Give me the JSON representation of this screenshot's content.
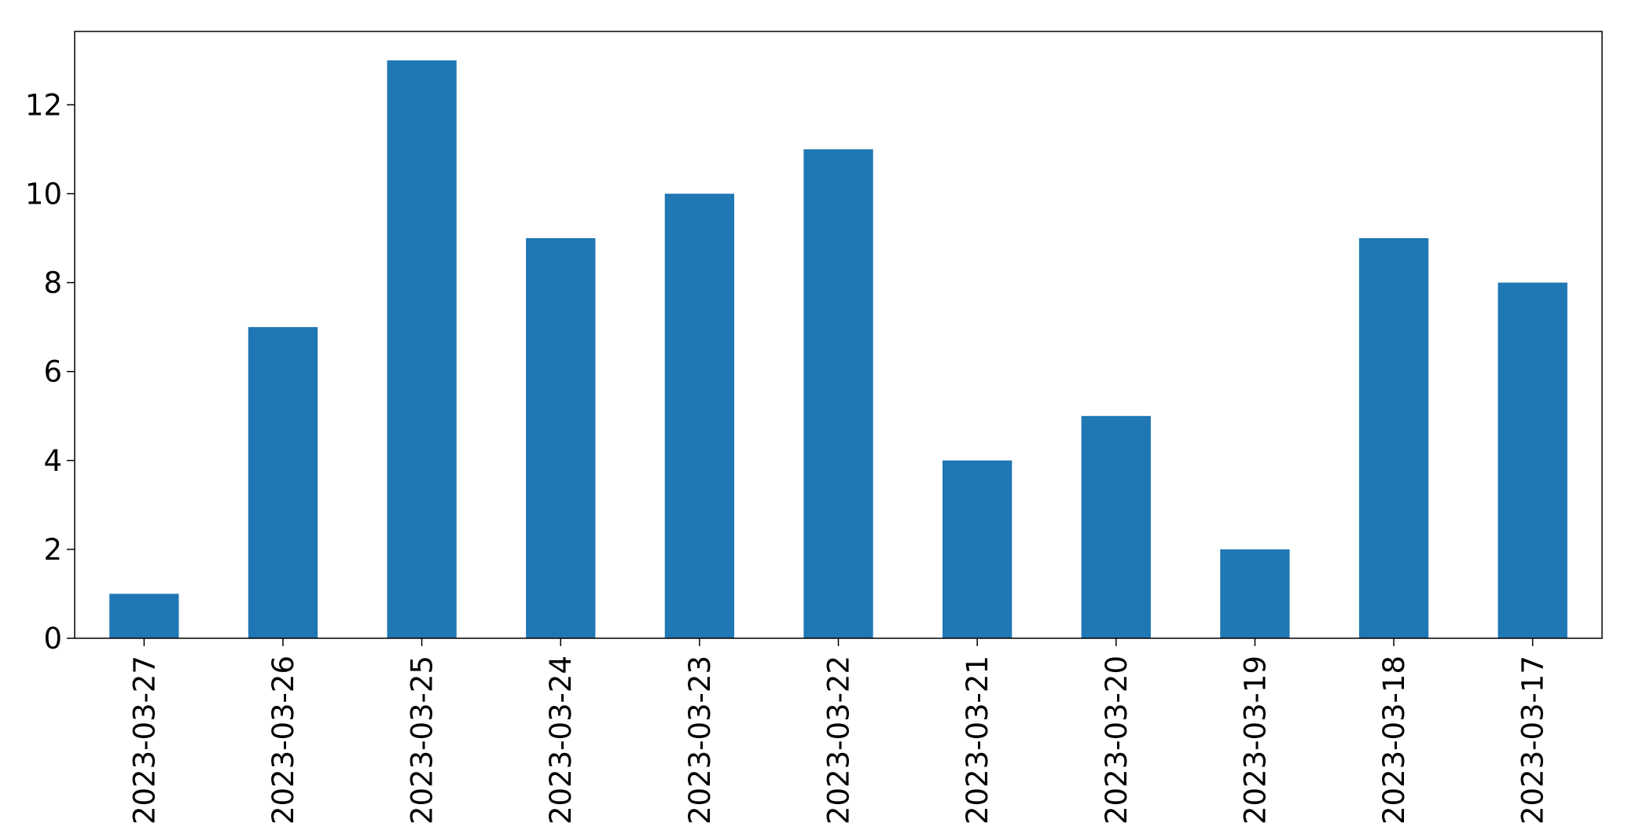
{
  "chart_data": {
    "type": "bar",
    "categories": [
      "2023-03-27",
      "2023-03-26",
      "2023-03-25",
      "2023-03-24",
      "2023-03-23",
      "2023-03-22",
      "2023-03-21",
      "2023-03-20",
      "2023-03-19",
      "2023-03-18",
      "2023-03-17"
    ],
    "values": [
      1,
      7,
      13,
      9,
      10,
      11,
      4,
      5,
      2,
      9,
      8
    ],
    "ylim": [
      0,
      13.65
    ],
    "yticks": [
      0,
      2,
      4,
      6,
      8,
      10,
      12
    ],
    "grid": false,
    "legend": "none",
    "bar_color": "#1f77b4"
  }
}
